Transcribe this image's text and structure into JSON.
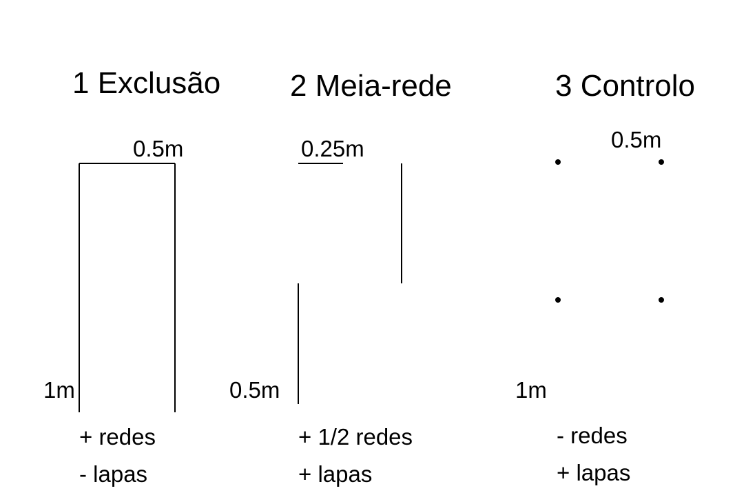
{
  "treatments": [
    {
      "title": "1 Exclusão",
      "width_label": "0.5m",
      "height_label": "1m",
      "effects": [
        "+ redes",
        "- lapas"
      ]
    },
    {
      "title": "2 Meia-rede",
      "width_label": "0.25m",
      "height_label": "0.5m",
      "effects": [
        "+ 1/2 redes",
        "+ lapas"
      ]
    },
    {
      "title": "3 Controlo",
      "width_label": "0.5m",
      "height_label": "1m",
      "effects": [
        "- redes",
        "+ lapas"
      ]
    }
  ],
  "colors": {
    "line": "#000000",
    "background": "#ffffff"
  }
}
